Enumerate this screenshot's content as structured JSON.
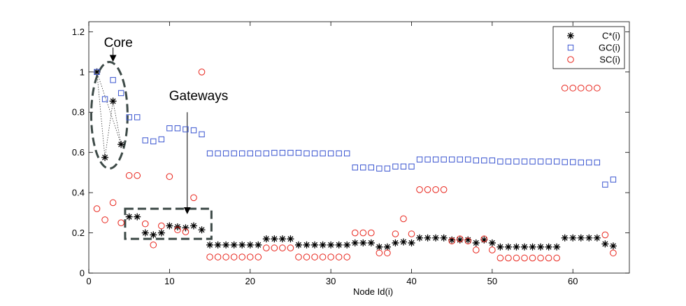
{
  "chart_data": {
    "type": "scatter",
    "title": "",
    "xlabel": "Node Id(i)",
    "ylabel": "",
    "xlim": [
      0,
      67
    ],
    "ylim": [
      0,
      1.25
    ],
    "xticks": [
      0,
      10,
      20,
      30,
      40,
      50,
      60
    ],
    "yticks": [
      0,
      0.2,
      0.4,
      0.6,
      0.8,
      1,
      1.2
    ],
    "xtick_labels": [
      "0",
      "10",
      "20",
      "30",
      "40",
      "50",
      "60"
    ],
    "ytick_labels": [
      "0",
      "0.2",
      "0.4",
      "0.6",
      "0.8",
      "1",
      "1.2"
    ],
    "grid": false,
    "legend_position": "top-right",
    "series": [
      {
        "name": "C*(i)",
        "marker": "asterisk",
        "color": "#000000",
        "connect_points": [
          1,
          2,
          3,
          4
        ],
        "x": [
          1,
          2,
          3,
          4,
          5,
          6,
          7,
          8,
          9,
          10,
          11,
          12,
          13,
          14,
          15,
          16,
          17,
          18,
          19,
          20,
          21,
          22,
          23,
          24,
          25,
          26,
          27,
          28,
          29,
          30,
          31,
          32,
          33,
          34,
          35,
          36,
          37,
          38,
          39,
          40,
          41,
          42,
          43,
          44,
          45,
          46,
          47,
          48,
          49,
          50,
          51,
          52,
          53,
          54,
          55,
          56,
          57,
          58,
          59,
          60,
          61,
          62,
          63,
          64,
          65
        ],
        "values": [
          1.0,
          0.575,
          0.855,
          0.64,
          0.28,
          0.28,
          0.2,
          0.19,
          0.2,
          0.235,
          0.23,
          0.225,
          0.235,
          0.215,
          0.14,
          0.14,
          0.14,
          0.14,
          0.14,
          0.14,
          0.14,
          0.17,
          0.17,
          0.17,
          0.17,
          0.14,
          0.14,
          0.14,
          0.14,
          0.14,
          0.14,
          0.14,
          0.15,
          0.15,
          0.15,
          0.13,
          0.13,
          0.15,
          0.155,
          0.15,
          0.175,
          0.175,
          0.175,
          0.175,
          0.165,
          0.165,
          0.165,
          0.15,
          0.165,
          0.15,
          0.13,
          0.13,
          0.13,
          0.13,
          0.13,
          0.13,
          0.13,
          0.13,
          0.175,
          0.175,
          0.175,
          0.175,
          0.175,
          0.145,
          0.135
        ]
      },
      {
        "name": "GC(i)",
        "marker": "square",
        "color": "#3a55d0",
        "x": [
          1,
          2,
          3,
          4,
          5,
          6,
          7,
          8,
          9,
          10,
          11,
          12,
          13,
          14,
          15,
          16,
          17,
          18,
          19,
          20,
          21,
          22,
          23,
          24,
          25,
          26,
          27,
          28,
          29,
          30,
          31,
          32,
          33,
          34,
          35,
          36,
          37,
          38,
          39,
          40,
          41,
          42,
          43,
          44,
          45,
          46,
          47,
          48,
          49,
          50,
          51,
          52,
          53,
          54,
          55,
          56,
          57,
          58,
          59,
          60,
          61,
          62,
          63,
          64,
          65
        ],
        "values": [
          1.0,
          0.865,
          0.96,
          0.895,
          0.775,
          0.775,
          0.66,
          0.655,
          0.665,
          0.72,
          0.72,
          0.715,
          0.71,
          0.69,
          0.595,
          0.595,
          0.595,
          0.595,
          0.595,
          0.595,
          0.595,
          0.595,
          0.598,
          0.598,
          0.598,
          0.598,
          0.595,
          0.595,
          0.595,
          0.595,
          0.595,
          0.595,
          0.525,
          0.525,
          0.525,
          0.52,
          0.52,
          0.53,
          0.53,
          0.53,
          0.565,
          0.565,
          0.565,
          0.565,
          0.565,
          0.565,
          0.565,
          0.56,
          0.56,
          0.56,
          0.555,
          0.555,
          0.555,
          0.555,
          0.555,
          0.555,
          0.555,
          0.555,
          0.552,
          0.552,
          0.55,
          0.55,
          0.55,
          0.44,
          0.465
        ]
      },
      {
        "name": "SC(i)",
        "marker": "circle",
        "color": "#e8231a",
        "x": [
          1,
          2,
          3,
          4,
          5,
          6,
          7,
          8,
          9,
          10,
          11,
          12,
          13,
          14,
          15,
          16,
          17,
          18,
          19,
          20,
          21,
          22,
          23,
          24,
          25,
          26,
          27,
          28,
          29,
          30,
          31,
          32,
          33,
          34,
          35,
          36,
          37,
          38,
          39,
          40,
          41,
          42,
          43,
          44,
          45,
          46,
          47,
          48,
          49,
          50,
          51,
          52,
          53,
          54,
          55,
          56,
          57,
          58,
          59,
          60,
          61,
          62,
          63,
          64,
          65
        ],
        "values": [
          0.32,
          0.265,
          0.35,
          0.25,
          0.485,
          0.485,
          0.245,
          0.14,
          0.235,
          0.48,
          0.215,
          0.205,
          0.375,
          1.0,
          0.08,
          0.08,
          0.08,
          0.08,
          0.08,
          0.08,
          0.08,
          0.125,
          0.125,
          0.125,
          0.125,
          0.08,
          0.08,
          0.08,
          0.08,
          0.08,
          0.08,
          0.08,
          0.2,
          0.2,
          0.2,
          0.1,
          0.1,
          0.195,
          0.27,
          0.195,
          0.415,
          0.415,
          0.415,
          0.415,
          0.16,
          0.17,
          0.16,
          0.115,
          0.17,
          0.115,
          0.075,
          0.075,
          0.075,
          0.075,
          0.075,
          0.075,
          0.075,
          0.075,
          0.92,
          0.92,
          0.92,
          0.92,
          0.92,
          0.19,
          0.1
        ]
      }
    ],
    "annotations": {
      "core": {
        "label": "Core",
        "region_x": [
          0.3,
          4.8
        ],
        "region_y": [
          0.52,
          1.05
        ],
        "arrow_from": [
          3,
          1.16
        ],
        "arrow_to": [
          3,
          1.04
        ]
      },
      "gateways": {
        "label": "Gateways",
        "region_x": [
          4.5,
          15.2
        ],
        "region_y": [
          0.17,
          0.32
        ],
        "arrow_from": [
          12.2,
          0.8
        ],
        "arrow_to": [
          12.2,
          0.3
        ]
      }
    }
  }
}
